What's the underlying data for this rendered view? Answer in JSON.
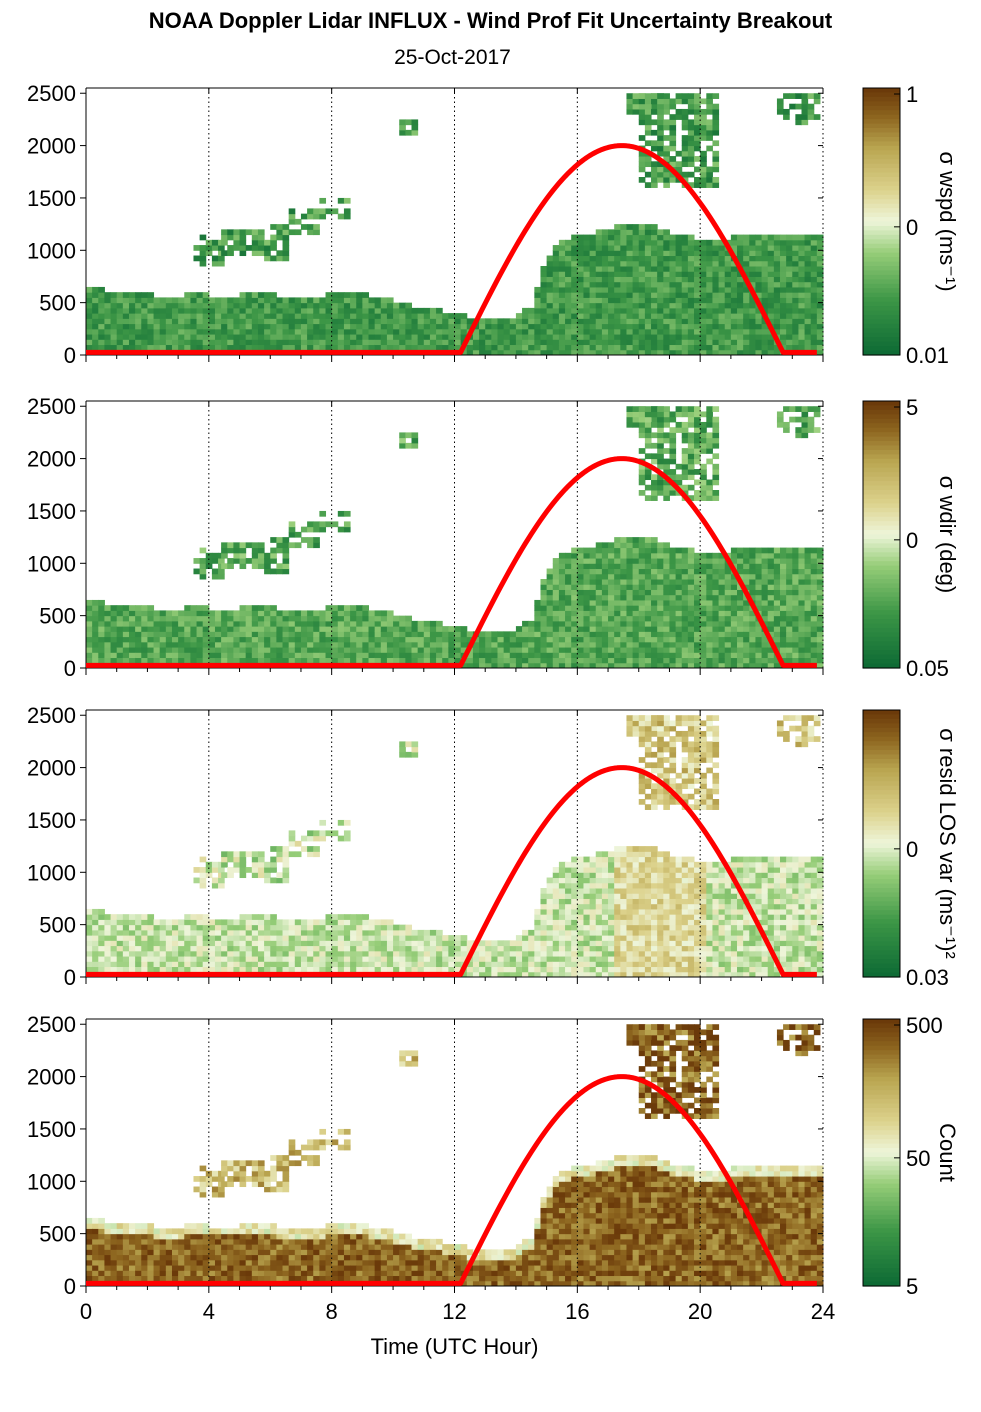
{
  "title": "NOAA Doppler Lidar INFLUX - Wind Prof Fit Uncertainty Breakout",
  "subtitle": "25-Oct-2017",
  "xlabel": "Time (UTC Hour)",
  "colors": {
    "dark_green": "#0e6b35",
    "mid_green": "#5cb55a",
    "pale": "#eef5da",
    "khaki": "#c6b566",
    "brown": "#6b3a0a",
    "sun_curve": "#ff0000"
  },
  "chart_data": [
    {
      "type": "heatmap",
      "panel": 1,
      "colorbar_label": "σ wspd (ms⁻¹)",
      "colorbar_ticks": [
        "1",
        "0",
        "0.01"
      ],
      "colorbar_scale": "log",
      "x_ticks": [
        0,
        4,
        8,
        12,
        16,
        20,
        24
      ],
      "xlim": [
        0,
        24
      ],
      "ylim": [
        0,
        2550
      ],
      "y_ticks": [
        0,
        500,
        1000,
        1500,
        2000,
        2500
      ],
      "vertical_grid": [
        4,
        8,
        12,
        16,
        20,
        24
      ],
      "dominant_level": 0.2
    },
    {
      "type": "heatmap",
      "panel": 2,
      "colorbar_label": "σ wdir (deg)",
      "colorbar_ticks": [
        "5",
        "0",
        "0.05"
      ],
      "colorbar_scale": "log",
      "x_ticks": [
        0,
        4,
        8,
        12,
        16,
        20,
        24
      ],
      "xlim": [
        0,
        24
      ],
      "ylim": [
        0,
        2550
      ],
      "y_ticks": [
        0,
        500,
        1000,
        1500,
        2000,
        2500
      ],
      "vertical_grid": [
        4,
        8,
        12,
        16,
        20,
        24
      ],
      "dominant_level": 0.25
    },
    {
      "type": "heatmap",
      "panel": 3,
      "colorbar_label": "σ resid LOS var (ms⁻¹)²",
      "colorbar_ticks": [
        "0",
        "0.03"
      ],
      "colorbar_scale": "log",
      "x_ticks": [
        0,
        4,
        8,
        12,
        16,
        20,
        24
      ],
      "xlim": [
        0,
        24
      ],
      "ylim": [
        0,
        2550
      ],
      "y_ticks": [
        0,
        500,
        1000,
        1500,
        2000,
        2500
      ],
      "vertical_grid": [
        4,
        8,
        12,
        16,
        20,
        24
      ],
      "dominant_level": 0.45
    },
    {
      "type": "heatmap",
      "panel": 4,
      "colorbar_label": "Count",
      "colorbar_ticks": [
        "500",
        "50",
        "5"
      ],
      "colorbar_scale": "log",
      "x_ticks": [
        0,
        4,
        8,
        12,
        16,
        20,
        24
      ],
      "xlim": [
        0,
        24
      ],
      "ylim": [
        0,
        2550
      ],
      "y_ticks": [
        0,
        500,
        1000,
        1500,
        2000,
        2500
      ],
      "vertical_grid": [
        4,
        8,
        12,
        16,
        20,
        24
      ],
      "dominant_level": 0.9
    }
  ],
  "boundary_layer_top": {
    "t": [
      0,
      0.5,
      1,
      2,
      3,
      3.5,
      4,
      5,
      6,
      7,
      8,
      9,
      10,
      11,
      11.5,
      12,
      12.5,
      13,
      14,
      14.5,
      15,
      15.5,
      16,
      17,
      18,
      19,
      20,
      21,
      22,
      23,
      23.8
    ],
    "h": [
      600,
      620,
      560,
      560,
      520,
      600,
      550,
      550,
      560,
      520,
      560,
      560,
      500,
      420,
      400,
      380,
      340,
      300,
      330,
      450,
      900,
      1080,
      1120,
      1180,
      1250,
      1150,
      1080,
      1100,
      1120,
      1140,
      1140
    ]
  },
  "sun_curve": {
    "name": "solar elevation",
    "start_hour": 12.2,
    "peak_hour": 17.5,
    "end_hour": 22.7,
    "peak_height": 2000,
    "baseline": 25
  }
}
